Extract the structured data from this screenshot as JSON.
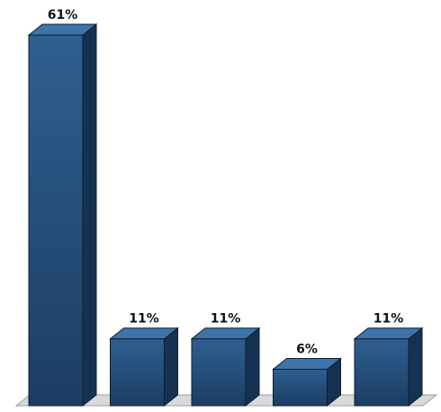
{
  "chart_data": {
    "type": "bar",
    "style": "3d",
    "categories": [
      "",
      "",
      "",
      "",
      ""
    ],
    "values": [
      61,
      11,
      11,
      6,
      11
    ],
    "data_labels": [
      "61%",
      "11%",
      "11%",
      "6%",
      "11%"
    ],
    "ylim": [
      0,
      61
    ],
    "grid": false,
    "legend": "none",
    "title": "",
    "xlabel": "",
    "ylabel": ""
  },
  "colors": {
    "bar_front_top": "#2f5f90",
    "bar_front_bottom": "#1c3d63",
    "bar_side": "#163252",
    "bar_top": "#3f74a9",
    "floor": "#d9d9d9",
    "floor_stroke": "#9e9e9e",
    "outline": "#0c1d30"
  }
}
